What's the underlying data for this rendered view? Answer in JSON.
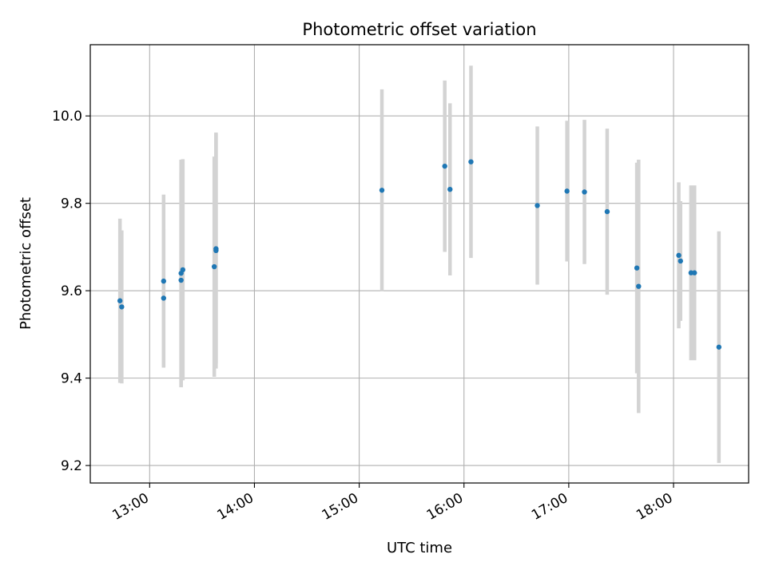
{
  "chart_data": {
    "type": "scatter",
    "title": "Photometric offset variation",
    "xlabel": "UTC time",
    "ylabel": "Photometric offset",
    "x_ticks": [
      "13:00",
      "14:00",
      "15:00",
      "16:00",
      "17:00",
      "18:00"
    ],
    "y_ticks": [
      "9.2",
      "9.4",
      "9.6",
      "9.8",
      "10.0"
    ],
    "xlim": [
      "12:26",
      "18:43"
    ],
    "ylim": [
      9.16,
      10.163
    ],
    "grid": true,
    "colors": {
      "point": "#1f77b4",
      "errorbar": "#d3d3d3",
      "grid": "#b0b0b0"
    },
    "series": [
      {
        "points": [
          {
            "x": "12:43",
            "y": 9.577,
            "err": 0.188
          },
          {
            "x": "12:44",
            "y": 9.563,
            "err": 0.175
          },
          {
            "x": "13:08",
            "y": 9.583,
            "err": 0.157
          },
          {
            "x": "13:08",
            "y": 9.622,
            "err": 0.198
          },
          {
            "x": "13:18",
            "y": 9.624,
            "err": 0.245
          },
          {
            "x": "13:18",
            "y": 9.64,
            "err": 0.26
          },
          {
            "x": "13:19",
            "y": 9.648,
            "err": 0.253
          },
          {
            "x": "13:37",
            "y": 9.655,
            "err": 0.252
          },
          {
            "x": "13:38",
            "y": 9.692,
            "err": 0.27
          },
          {
            "x": "13:38",
            "y": 9.696,
            "err": 0.263
          },
          {
            "x": "15:13",
            "y": 9.83,
            "err": 0.231
          },
          {
            "x": "15:49",
            "y": 9.885,
            "err": 0.196
          },
          {
            "x": "15:52",
            "y": 9.832,
            "err": 0.197
          },
          {
            "x": "16:04",
            "y": 9.895,
            "err": 0.22
          },
          {
            "x": "16:42",
            "y": 9.795,
            "err": 0.181
          },
          {
            "x": "16:59",
            "y": 9.828,
            "err": 0.161
          },
          {
            "x": "17:09",
            "y": 9.826,
            "err": 0.165
          },
          {
            "x": "17:22",
            "y": 9.781,
            "err": 0.19
          },
          {
            "x": "17:39",
            "y": 9.652,
            "err": 0.241
          },
          {
            "x": "17:40",
            "y": 9.61,
            "err": 0.29
          },
          {
            "x": "18:03",
            "y": 9.681,
            "err": 0.167
          },
          {
            "x": "18:04",
            "y": 9.668,
            "err": 0.137
          },
          {
            "x": "18:10",
            "y": 9.641,
            "err": 0.2
          },
          {
            "x": "18:12",
            "y": 9.641,
            "err": 0.2
          },
          {
            "x": "18:26",
            "y": 9.471,
            "err": 0.265
          }
        ]
      }
    ]
  }
}
